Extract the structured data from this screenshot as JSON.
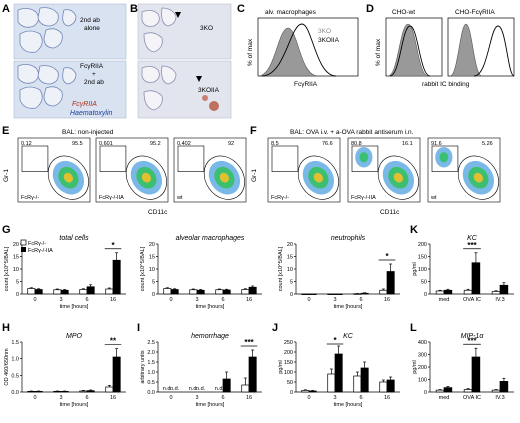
{
  "panels": {
    "A": {
      "letter": "A",
      "top_label_line1": "2nd ab",
      "top_label_line2": "alone",
      "bottom_label_line1": "FcγRIIA",
      "bottom_label_line2": "+",
      "bottom_label_line3": "2nd ab",
      "stain1": "FcγRIIA",
      "stain2": "Haematoxylin",
      "stain1_color": "#b03020",
      "stain2_color": "#2040a0"
    },
    "B": {
      "letter": "B",
      "top_label": "3KO",
      "bottom_label": "3KOIIA"
    },
    "C": {
      "letter": "C",
      "title": "alv. macrophages",
      "ylabel": "% of max",
      "xlabel": "FcγRIIA",
      "legend": [
        "3KO",
        "3KOIIA"
      ]
    },
    "D": {
      "letter": "D",
      "title1": "CHO-wt",
      "title2": "CHO-FcγRIIA",
      "ylabel": "% of max",
      "xlabel": "rabbit IC binding"
    },
    "E": {
      "letter": "E",
      "title": "BAL: non-injected",
      "ylabel": "Gr-1",
      "xlabel": "CD11c",
      "plots": [
        {
          "gate_left": "0.12",
          "gate_right": "95.5",
          "strain": "FcRγ-/-"
        },
        {
          "gate_left": "0.601",
          "gate_right": "95.2",
          "strain": "FcRγ-/-IIA"
        },
        {
          "gate_left": "0.402",
          "gate_right": "92",
          "strain": "wt"
        }
      ],
      "tick_labels": [
        "10^2",
        "10^3",
        "10^4",
        "10^5"
      ]
    },
    "F": {
      "letter": "F",
      "title": "BAL: OVA i.v. + a-OVA rabbit antiserum i.n.",
      "ylabel": "Gr-1",
      "xlabel": "CD11c",
      "plots": [
        {
          "gate_left": "8.5",
          "gate_right": "76.6",
          "strain": "FcRγ-/-"
        },
        {
          "gate_left": "80.8",
          "gate_right": "16.1",
          "strain": "FcRγ-/-IIA"
        },
        {
          "gate_left": "91.6",
          "gate_right": "5.26",
          "strain": "wt"
        }
      ]
    },
    "legend": {
      "open": "FcRγ-/-",
      "filled": "FcRγ-/-IIA"
    }
  },
  "chart_data": [
    {
      "panel": "G",
      "type": "bar",
      "title": "total cells",
      "xlabel": "time [hours]",
      "ylabel": "count [x10^5/BAL]",
      "categories": [
        "0",
        "3",
        "6",
        "16"
      ],
      "ylim": [
        0,
        20
      ],
      "yticks": [
        0,
        5,
        10,
        15,
        20
      ],
      "series": [
        {
          "name": "FcRγ-/-",
          "values": [
            2.2,
            1.7,
            1.8,
            2.0
          ],
          "err": [
            0.3,
            0.3,
            0.3,
            0.4
          ]
        },
        {
          "name": "FcRγ-/-IIA",
          "values": [
            1.8,
            1.5,
            2.9,
            13.5
          ],
          "err": [
            0.3,
            0.3,
            0.8,
            3.0
          ]
        }
      ],
      "sig": [
        {
          "cat": 3,
          "text": "*"
        }
      ]
    },
    {
      "panel": "G2",
      "type": "bar",
      "title": "alveolar macrophages",
      "xlabel": "time [hours]",
      "ylabel": "count [x10^5/BAL]",
      "categories": [
        "0",
        "3",
        "6",
        "16"
      ],
      "ylim": [
        0,
        20
      ],
      "yticks": [
        0,
        5,
        10,
        15,
        20
      ],
      "series": [
        {
          "name": "FcRγ-/-",
          "values": [
            2.2,
            1.7,
            1.7,
            1.8
          ],
          "err": [
            0.3,
            0.3,
            0.3,
            0.3
          ]
        },
        {
          "name": "FcRγ-/-IIA",
          "values": [
            1.8,
            1.5,
            1.6,
            2.7
          ],
          "err": [
            0.3,
            0.3,
            0.3,
            0.5
          ]
        }
      ],
      "sig": []
    },
    {
      "panel": "G3",
      "type": "bar",
      "title": "neutrophils",
      "xlabel": "time [hours]",
      "ylabel": "count [x10^5/BAL]",
      "categories": [
        "0",
        "3",
        "6",
        "16"
      ],
      "ylim": [
        0,
        20
      ],
      "yticks": [
        0,
        5,
        10,
        15,
        20
      ],
      "series": [
        {
          "name": "FcRγ-/-",
          "values": [
            0,
            0,
            0.1,
            1.5
          ],
          "err": [
            0,
            0,
            0.1,
            0.5
          ]
        },
        {
          "name": "FcRγ-/-IIA",
          "values": [
            0,
            0,
            0.3,
            9.0
          ],
          "err": [
            0,
            0,
            0.2,
            3.0
          ]
        }
      ],
      "sig": [
        {
          "cat": 3,
          "text": "*"
        }
      ]
    },
    {
      "panel": "K",
      "type": "bar",
      "title": "KC",
      "xlabel": "",
      "ylabel": "pg/ml",
      "categories": [
        "med",
        "OVA IC",
        "IV.3"
      ],
      "ylim": [
        0,
        200
      ],
      "yticks": [
        0,
        50,
        100,
        150,
        200
      ],
      "series": [
        {
          "name": "FcRγ-/-",
          "values": [
            12,
            15,
            10
          ],
          "err": [
            3,
            4,
            3
          ]
        },
        {
          "name": "FcRγ-/-IIA",
          "values": [
            15,
            125,
            35
          ],
          "err": [
            4,
            40,
            10
          ]
        }
      ],
      "sig": [
        {
          "cat": 1,
          "text": "***"
        }
      ]
    },
    {
      "panel": "H",
      "type": "bar",
      "title": "MPO",
      "xlabel": "time [hours]",
      "ylabel": "OD 460/650nm",
      "categories": [
        "0",
        "3",
        "6",
        "16"
      ],
      "ylim": [
        0,
        1.5
      ],
      "yticks": [
        0.0,
        0.5,
        1.0,
        1.5
      ],
      "series": [
        {
          "name": "FcRγ-/-",
          "values": [
            0.02,
            0.02,
            0.03,
            0.15
          ],
          "err": [
            0.01,
            0.01,
            0.02,
            0.05
          ]
        },
        {
          "name": "FcRγ-/-IIA",
          "values": [
            0.02,
            0.02,
            0.04,
            1.05
          ],
          "err": [
            0.01,
            0.01,
            0.02,
            0.25
          ]
        }
      ],
      "sig": [
        {
          "cat": 3,
          "text": "**"
        }
      ]
    },
    {
      "panel": "I",
      "type": "bar",
      "title": "hemorrhage",
      "xlabel": "time [hours]",
      "ylabel": "arbitrary units",
      "categories": [
        "0",
        "3",
        "6",
        "16"
      ],
      "ylim": [
        0,
        2.5
      ],
      "yticks": [
        0.0,
        0.5,
        1.0,
        1.5,
        2.0,
        2.5
      ],
      "series": [
        {
          "name": "FcRγ-/-",
          "values": [
            0,
            0,
            0,
            0.35
          ],
          "err": [
            0,
            0,
            0,
            0.35
          ]
        },
        {
          "name": "FcRγ-/-IIA",
          "values": [
            0,
            0,
            0.65,
            1.75
          ],
          "err": [
            0,
            0,
            0.35,
            0.35
          ]
        }
      ],
      "nd": [
        [
          true,
          true
        ],
        [
          true,
          true
        ],
        [
          true,
          false
        ],
        [
          false,
          false
        ]
      ],
      "nd_text": "n.d.",
      "sig": [
        {
          "cat": 3,
          "text": "***"
        }
      ]
    },
    {
      "panel": "J",
      "type": "bar",
      "title": "KC",
      "xlabel": "time [hours]",
      "ylabel": "pg/ml",
      "categories": [
        "0",
        "3",
        "6",
        "16"
      ],
      "ylim": [
        0,
        250
      ],
      "yticks": [
        0,
        50,
        100,
        150,
        200,
        250
      ],
      "series": [
        {
          "name": "FcRγ-/-",
          "values": [
            8,
            90,
            80,
            50
          ],
          "err": [
            3,
            25,
            20,
            10
          ]
        },
        {
          "name": "FcRγ-/-IIA",
          "values": [
            5,
            190,
            120,
            60
          ],
          "err": [
            3,
            40,
            30,
            15
          ]
        }
      ],
      "sig": [
        {
          "cat": 1,
          "text": "*"
        }
      ]
    },
    {
      "panel": "L",
      "type": "bar",
      "title": "MIP-1α",
      "xlabel": "",
      "ylabel": "pg/ml",
      "categories": [
        "med",
        "OVA IC",
        "IV.3"
      ],
      "ylim": [
        0,
        400
      ],
      "yticks": [
        0,
        100,
        200,
        300,
        400
      ],
      "series": [
        {
          "name": "FcRγ-/-",
          "values": [
            15,
            20,
            15
          ],
          "err": [
            5,
            8,
            5
          ]
        },
        {
          "name": "FcRγ-/-IIA",
          "values": [
            35,
            280,
            85
          ],
          "err": [
            10,
            70,
            25
          ]
        }
      ],
      "sig": [
        {
          "cat": 1,
          "text": "***"
        }
      ]
    }
  ]
}
